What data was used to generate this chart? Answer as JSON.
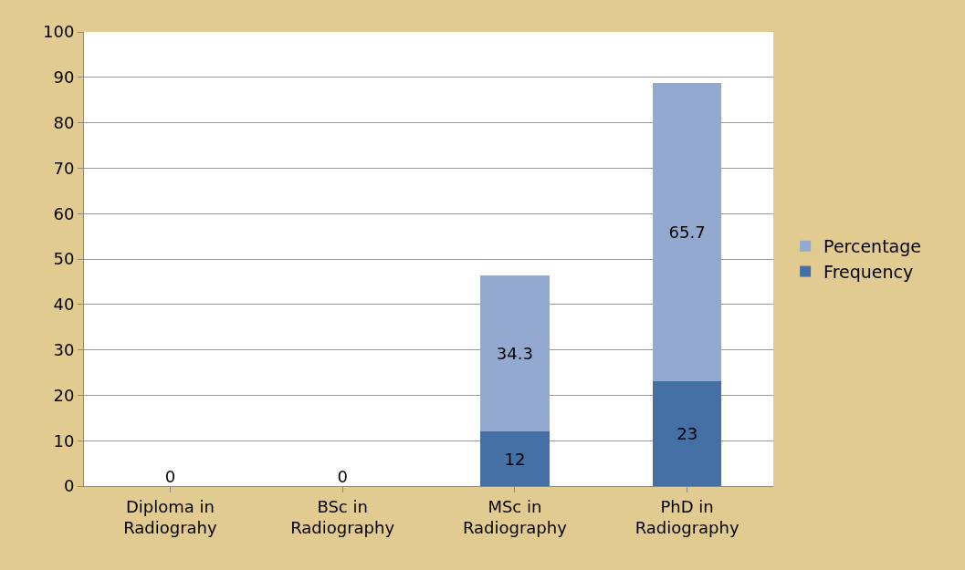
{
  "chart_data": {
    "type": "bar",
    "stacked": true,
    "categories": [
      "Diploma in\nRadiograhy",
      "BSc in\nRadiography",
      "MSc in\nRadiography",
      "PhD in\nRadiography"
    ],
    "series": [
      {
        "name": "Frequency",
        "color": "#4470a5",
        "values": [
          0,
          0,
          12,
          23
        ],
        "value_labels": [
          "0",
          "0",
          "12",
          "23"
        ]
      },
      {
        "name": "Percentage",
        "color": "#94a9d0",
        "values": [
          0,
          0,
          34.3,
          65.7
        ],
        "value_labels": [
          null,
          null,
          "34.3",
          "65.7"
        ]
      }
    ],
    "ylim": [
      0,
      100
    ],
    "yticks": [
      0,
      10,
      20,
      30,
      40,
      50,
      60,
      70,
      80,
      90,
      100
    ],
    "grid": "y",
    "legend": "right"
  }
}
